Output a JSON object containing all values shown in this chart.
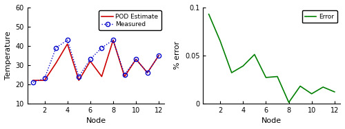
{
  "nodes": [
    1,
    2,
    3,
    4,
    5,
    6,
    7,
    8,
    9,
    10,
    11,
    12
  ],
  "pod_temp": [
    22,
    22,
    31,
    41,
    22,
    32,
    24,
    43,
    24,
    33,
    26,
    35
  ],
  "measured_temp": [
    21,
    23,
    39,
    43,
    24,
    33,
    39,
    43,
    25,
    33,
    26,
    35
  ],
  "error": [
    0.093,
    0.065,
    0.032,
    0.039,
    0.051,
    0.027,
    0.028,
    0.001,
    0.018,
    0.01,
    0.017,
    0.012
  ],
  "pod_color": "#cc0000",
  "measured_color": "#0000cc",
  "error_color": "#008000",
  "temp_ylim": [
    10,
    60
  ],
  "temp_yticks": [
    10,
    20,
    30,
    40,
    50,
    60
  ],
  "error_ylim": [
    0,
    0.1
  ],
  "error_yticks": [
    0,
    0.05,
    0.1
  ],
  "xlabel": "Node",
  "ylabel_left": "Temperature",
  "ylabel_right": "% error",
  "legend1_labels": [
    "POD Estimate",
    "Measured"
  ],
  "xticks": [
    2,
    4,
    6,
    8,
    10,
    12
  ],
  "background_color": "#ffffff"
}
